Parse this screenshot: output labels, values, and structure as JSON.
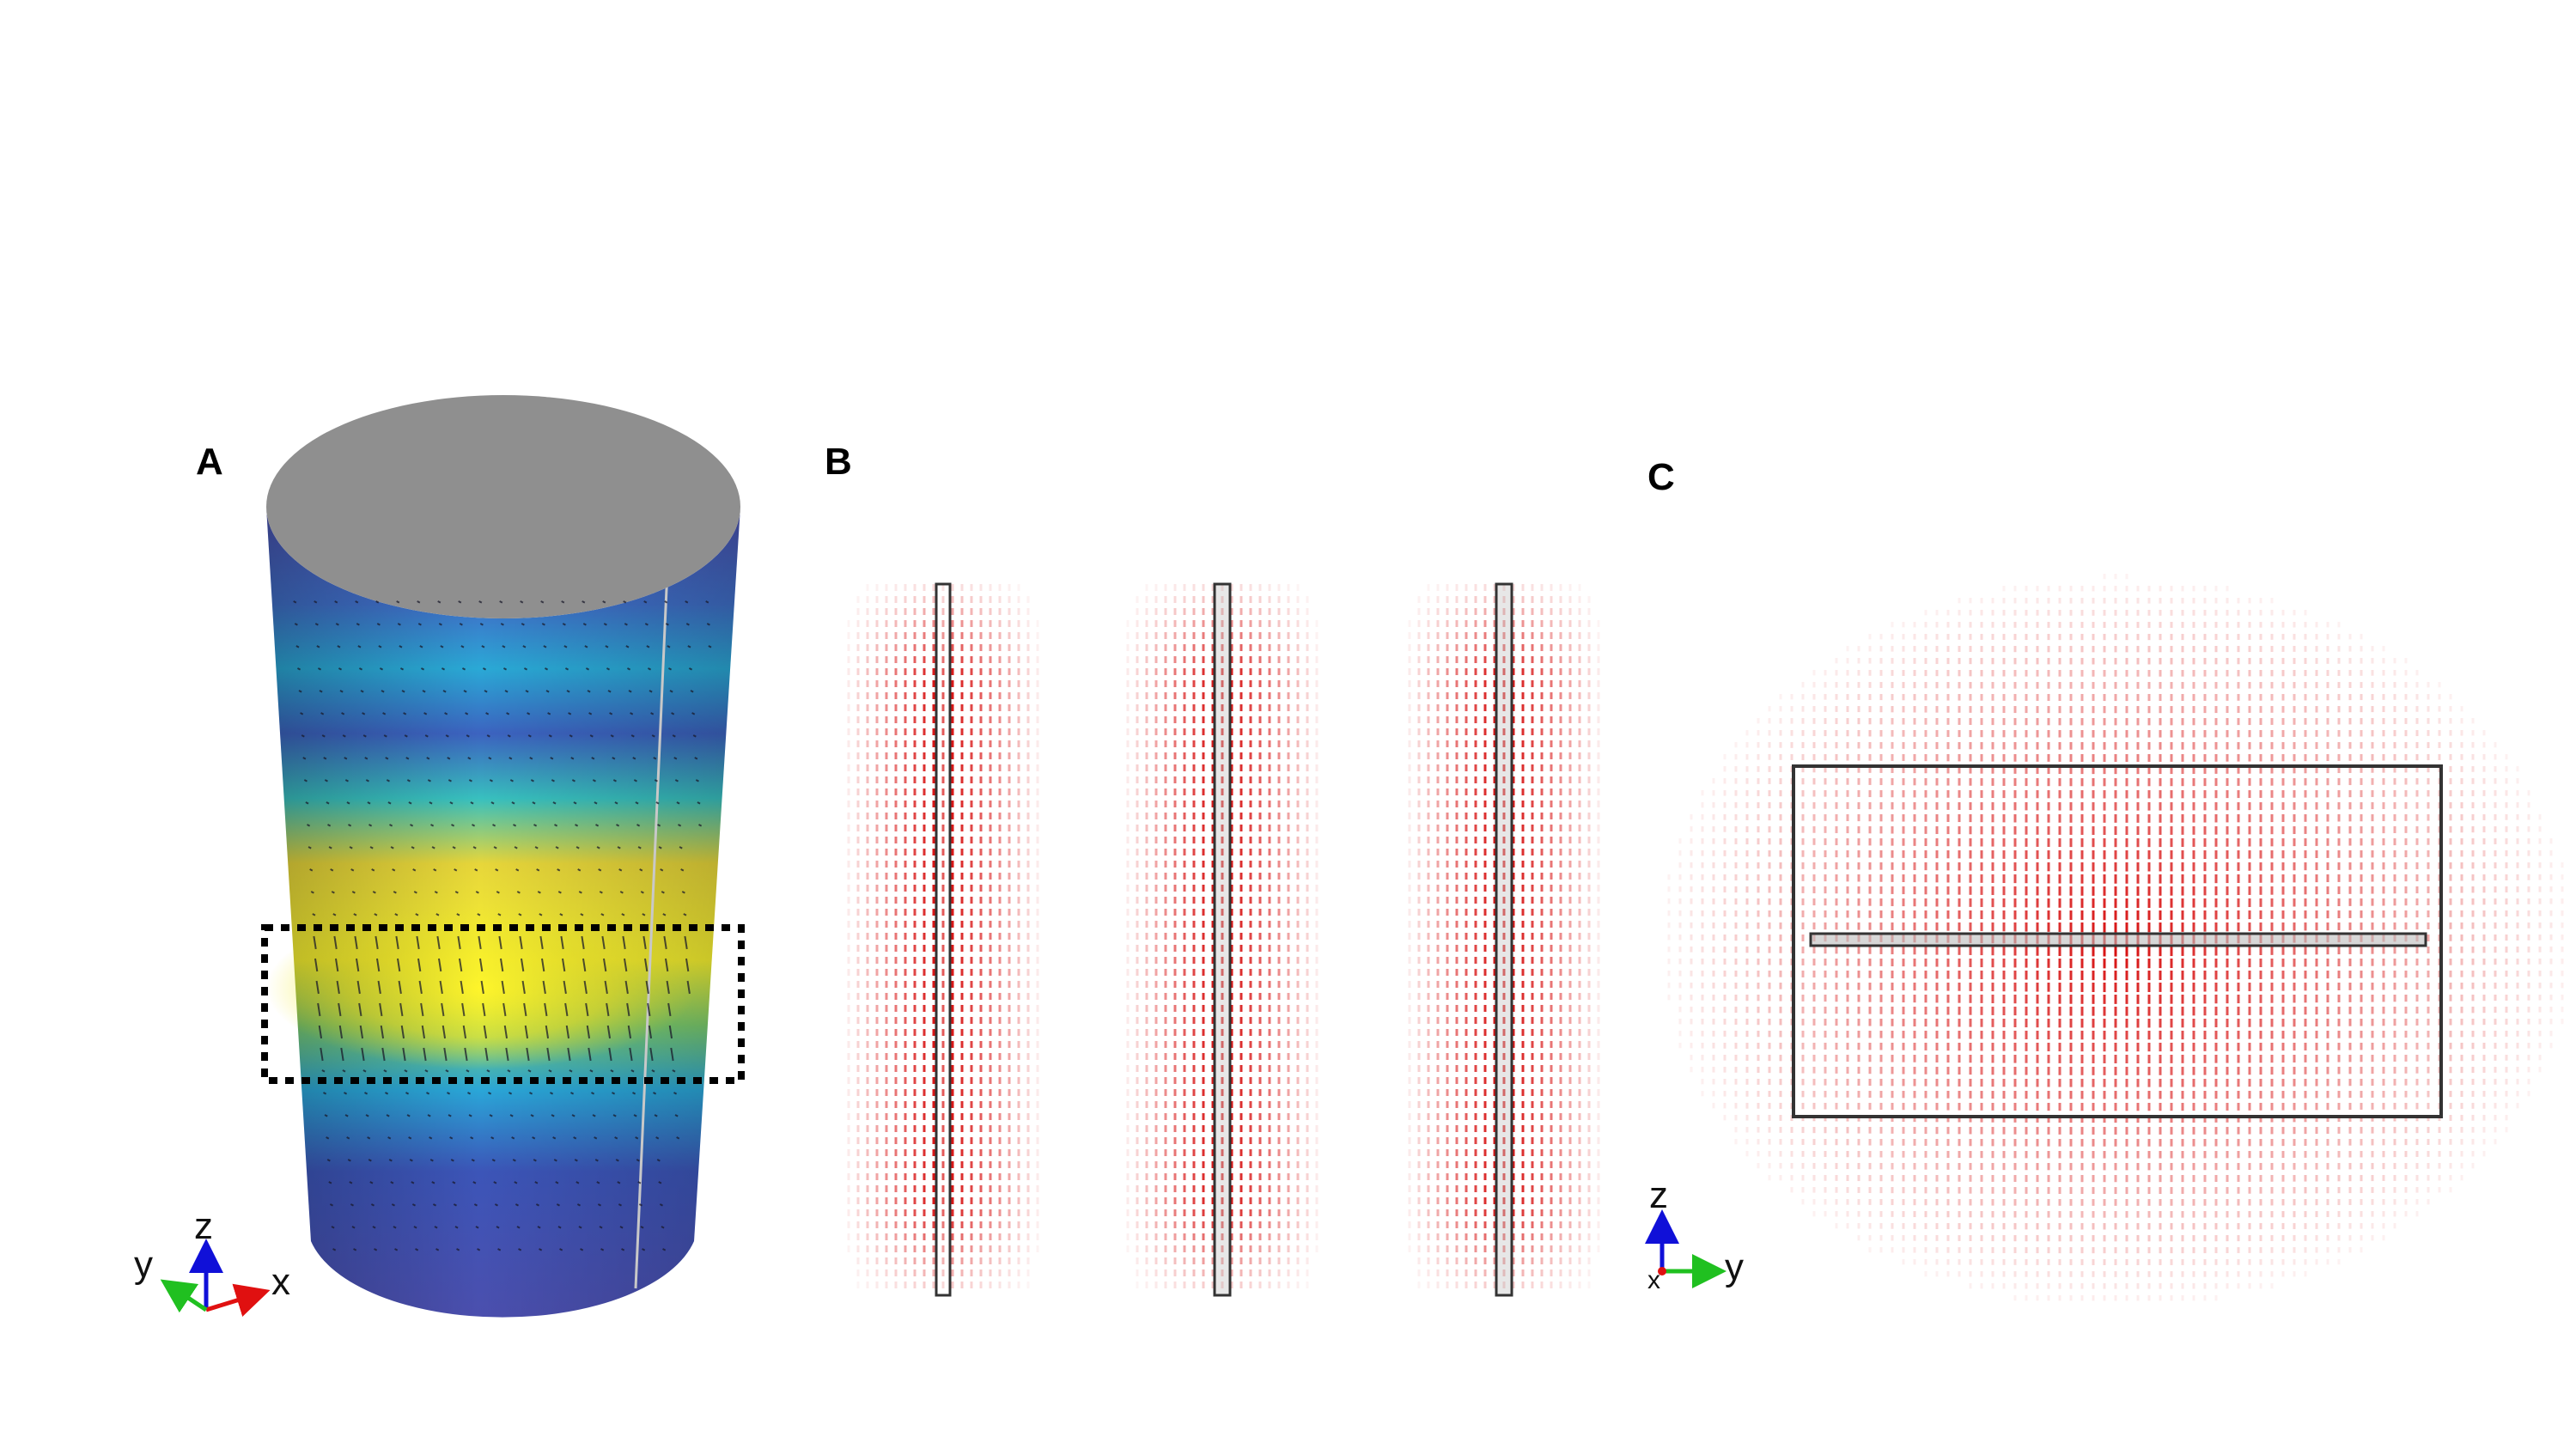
{
  "panels": {
    "A": {
      "label": "A",
      "axes": {
        "x": "x",
        "y": "y",
        "z": "z"
      }
    },
    "B": {
      "label": "B"
    },
    "C": {
      "label": "C",
      "axes": {
        "y": "y",
        "z": "z",
        "x": "x"
      }
    }
  },
  "colors": {
    "cylinder_top": "#8f8f8f",
    "field_low": "#3b3f9e",
    "field_mid": "#2fb8c8",
    "field_high": "#f7f230",
    "vector_arrows": "#d40000",
    "axis_x": "#e01010",
    "axis_y": "#20c020",
    "axis_z": "#1010d8",
    "selection_box": "#000000"
  }
}
